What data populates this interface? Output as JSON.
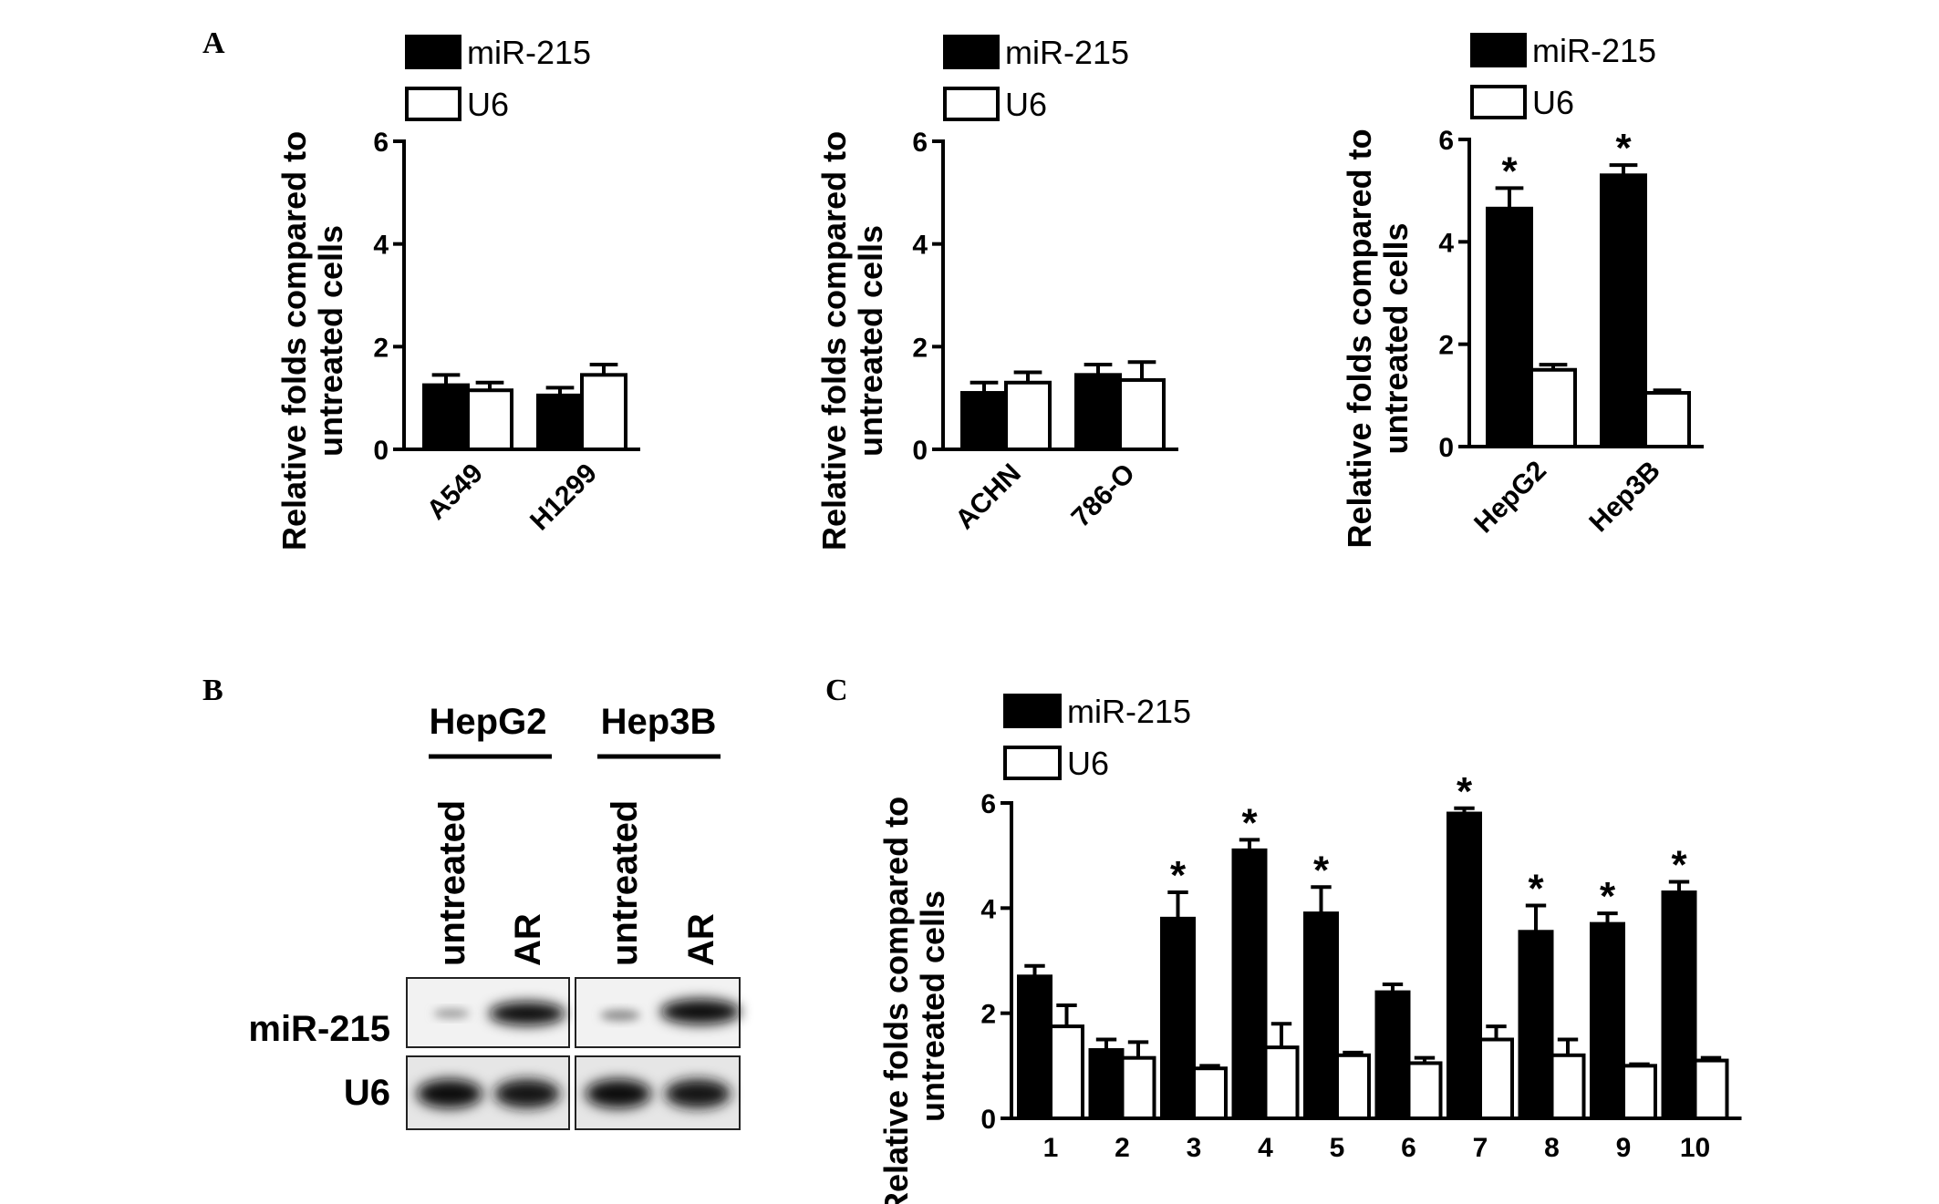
{
  "figure": {
    "panel_labels": [
      "A",
      "B",
      "C"
    ]
  },
  "colors": {
    "mir215": "#000000",
    "u6": "#ffffff",
    "axis": "#000000"
  },
  "chart_data": [
    {
      "id": "A1",
      "type": "bar",
      "ylabel_lines": [
        "Relative folds compared to",
        "untreated cells"
      ],
      "yticks": [
        "0",
        "2",
        "4",
        "6"
      ],
      "ylim": [
        0,
        6
      ],
      "categories": [
        "A549",
        "H1299"
      ],
      "legend": [
        "miR-215",
        "U6"
      ],
      "series": [
        {
          "name": "miR-215",
          "values": [
            1.25,
            1.05
          ],
          "errors": [
            0.2,
            0.15
          ]
        },
        {
          "name": "U6",
          "values": [
            1.15,
            1.45
          ],
          "errors": [
            0.15,
            0.2
          ]
        }
      ],
      "significant": [
        [
          false,
          false
        ],
        [
          false,
          false
        ]
      ]
    },
    {
      "id": "A2",
      "type": "bar",
      "ylabel_lines": [
        "Relative folds compared to",
        "untreated cells"
      ],
      "yticks": [
        "0",
        "2",
        "4",
        "6"
      ],
      "ylim": [
        0,
        6
      ],
      "categories": [
        "ACHN",
        "786-O"
      ],
      "legend": [
        "miR-215",
        "U6"
      ],
      "series": [
        {
          "name": "miR-215",
          "values": [
            1.1,
            1.45
          ],
          "errors": [
            0.2,
            0.2
          ]
        },
        {
          "name": "U6",
          "values": [
            1.3,
            1.35
          ],
          "errors": [
            0.2,
            0.35
          ]
        }
      ],
      "significant": [
        [
          false,
          false
        ],
        [
          false,
          false
        ]
      ]
    },
    {
      "id": "A3",
      "type": "bar",
      "ylabel_lines": [
        "Relative folds compared to",
        "untreated cells"
      ],
      "yticks": [
        "0",
        "2",
        "4",
        "6"
      ],
      "ylim": [
        0,
        6
      ],
      "categories": [
        "HepG2",
        "Hep3B"
      ],
      "legend": [
        "miR-215",
        "U6"
      ],
      "series": [
        {
          "name": "miR-215",
          "values": [
            4.65,
            5.3
          ],
          "errors": [
            0.4,
            0.2
          ]
        },
        {
          "name": "U6",
          "values": [
            1.5,
            1.05
          ],
          "errors": [
            0.1,
            0.05
          ]
        }
      ],
      "significant": [
        [
          true,
          true
        ],
        [
          false,
          false
        ]
      ],
      "sig_mark": "*"
    },
    {
      "id": "C",
      "type": "bar",
      "ylabel_lines": [
        "Relative folds compared to",
        "untreated cells"
      ],
      "yticks": [
        "0",
        "2",
        "4",
        "6"
      ],
      "ylim": [
        0,
        6
      ],
      "categories": [
        "1",
        "2",
        "3",
        "4",
        "5",
        "6",
        "7",
        "8",
        "9",
        "10"
      ],
      "legend": [
        "miR-215",
        "U6"
      ],
      "series": [
        {
          "name": "miR-215",
          "values": [
            2.7,
            1.3,
            3.8,
            5.1,
            3.9,
            2.4,
            5.8,
            3.55,
            3.7,
            4.3
          ],
          "errors": [
            0.2,
            0.2,
            0.5,
            0.2,
            0.5,
            0.15,
            0.1,
            0.5,
            0.2,
            0.2
          ]
        },
        {
          "name": "U6",
          "values": [
            1.75,
            1.15,
            0.95,
            1.35,
            1.2,
            1.05,
            1.5,
            1.2,
            1.0,
            1.1
          ],
          "errors": [
            0.4,
            0.3,
            0.05,
            0.45,
            0.05,
            0.1,
            0.25,
            0.3,
            0.03,
            0.05
          ]
        }
      ],
      "significant": [
        [
          false,
          false,
          true,
          true,
          true,
          false,
          true,
          true,
          true,
          true
        ],
        [
          false,
          false,
          false,
          false,
          false,
          false,
          false,
          false,
          false,
          false
        ]
      ],
      "sig_mark": "*"
    }
  ],
  "blot": {
    "groups": [
      {
        "label": "HepG2",
        "lanes": [
          "untreated",
          "AR"
        ]
      },
      {
        "label": "Hep3B",
        "lanes": [
          "untreated",
          "AR"
        ]
      }
    ],
    "rows": [
      "miR-215",
      "U6"
    ]
  }
}
